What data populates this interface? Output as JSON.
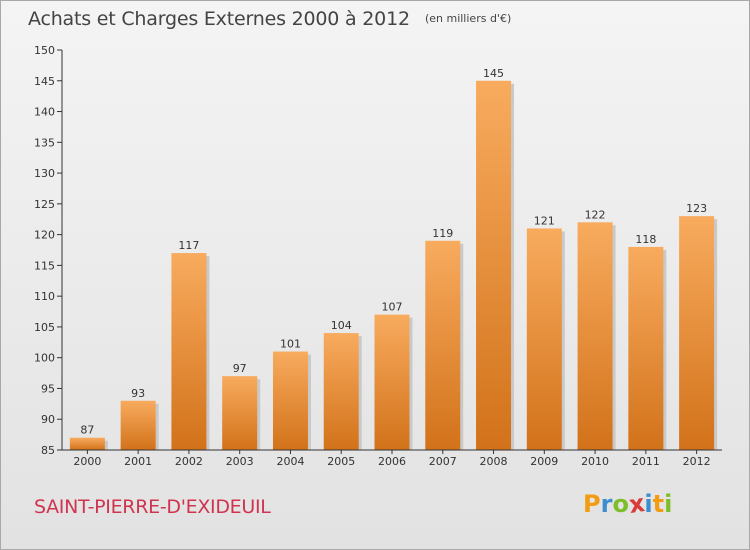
{
  "title": "Achats et Charges Externes 2000 à 2012",
  "subtitle": "(en milliers d'€)",
  "location": "SAINT-PIERRE-D'EXIDEUIL",
  "brand": {
    "letters": [
      "P",
      "r",
      "o",
      "x",
      "i",
      "t",
      "i"
    ],
    "colors": [
      "#f39c12",
      "#3b8fd0",
      "#7cbf2a",
      "#d93a3a",
      "#3b8fd0",
      "#f39c12",
      "#7cbf2a"
    ]
  },
  "colors": {
    "bar_light": "#f8ab5e",
    "bar_dark": "#d2721a",
    "axis": "#333333"
  },
  "chart_data": {
    "type": "bar",
    "categories": [
      "2000",
      "2001",
      "2002",
      "2003",
      "2004",
      "2005",
      "2006",
      "2007",
      "2008",
      "2009",
      "2010",
      "2011",
      "2012"
    ],
    "values": [
      87,
      93,
      117,
      97,
      101,
      104,
      107,
      119,
      145,
      121,
      122,
      118,
      123
    ],
    "yticks": [
      85,
      90,
      95,
      100,
      105,
      110,
      115,
      120,
      125,
      130,
      135,
      140,
      145,
      150
    ],
    "ylim": [
      85,
      150
    ],
    "grid": false,
    "legend": "none"
  }
}
